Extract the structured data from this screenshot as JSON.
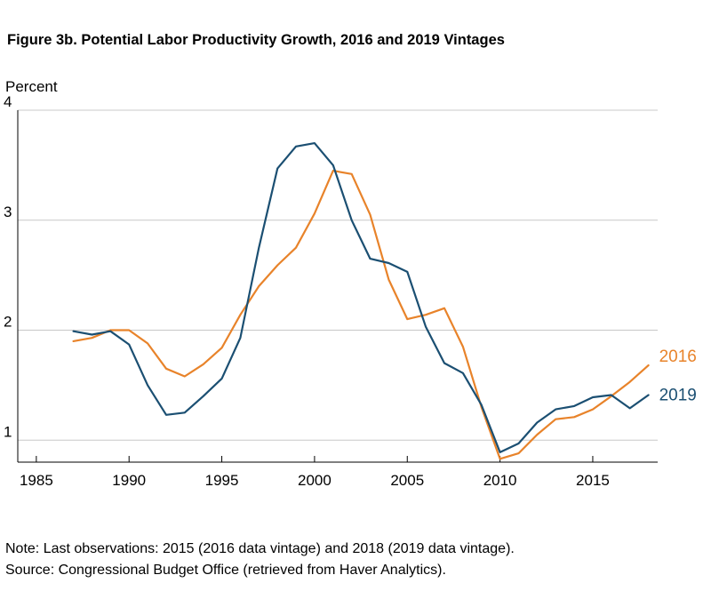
{
  "figure": {
    "title": "Figure 3b. Potential Labor Productivity Growth, 2016 and 2019 Vintages",
    "note": "Note: Last observations: 2015 (2016 data vintage) and 2018 (2019 data vintage).",
    "source": "Source: Congressional Budget Office (retrieved from Haver Analytics)."
  },
  "chart_data": {
    "type": "line",
    "title": "Figure 3b. Potential Labor Productivity Growth, 2016 and 2019 Vintages",
    "ylabel": "Percent",
    "xlabel": "",
    "xlim": [
      1984,
      2018.5
    ],
    "ylim": [
      0.8,
      4
    ],
    "x_ticks": [
      1985,
      1990,
      1995,
      2000,
      2005,
      2010,
      2015
    ],
    "y_ticks": [
      1,
      2,
      3,
      4
    ],
    "grid": "horizontal",
    "legend_placement": "inline-right",
    "series": [
      {
        "name": "2016",
        "color": "#e8832a",
        "x": [
          1987,
          1988,
          1989,
          1990,
          1991,
          1992,
          1993,
          1994,
          1995,
          1996,
          1997,
          1998,
          1999,
          2000,
          2001,
          2002,
          2003,
          2004,
          2005,
          2006,
          2007,
          2008,
          2009,
          2010,
          2011,
          2012,
          2013,
          2014,
          2015,
          2016,
          2017,
          2018
        ],
        "values": [
          1.9,
          1.93,
          2.0,
          2.0,
          1.88,
          1.65,
          1.58,
          1.69,
          1.84,
          2.14,
          2.4,
          2.59,
          2.75,
          3.06,
          3.45,
          3.42,
          3.05,
          2.46,
          2.1,
          2.14,
          2.2,
          1.85,
          1.3,
          0.83,
          0.88,
          1.05,
          1.19,
          1.21,
          1.28,
          1.4,
          1.53,
          1.68
        ]
      },
      {
        "name": "2019",
        "color": "#1b4f72",
        "x": [
          1987,
          1988,
          1989,
          1990,
          1991,
          1992,
          1993,
          1994,
          1995,
          1996,
          1997,
          1998,
          1999,
          2000,
          2001,
          2002,
          2003,
          2004,
          2005,
          2006,
          2007,
          2008,
          2009,
          2010,
          2011,
          2012,
          2013,
          2014,
          2015,
          2016,
          2017,
          2018
        ],
        "values": [
          1.99,
          1.96,
          1.99,
          1.87,
          1.5,
          1.23,
          1.25,
          1.4,
          1.56,
          1.93,
          2.75,
          3.47,
          3.67,
          3.7,
          3.5,
          3.0,
          2.65,
          2.61,
          2.53,
          2.03,
          1.7,
          1.61,
          1.32,
          0.89,
          0.97,
          1.16,
          1.28,
          1.31,
          1.39,
          1.41,
          1.29,
          1.41
        ]
      }
    ]
  }
}
